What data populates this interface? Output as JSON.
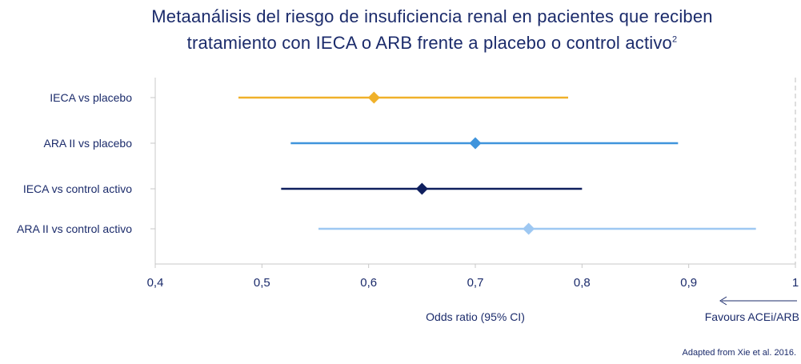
{
  "chart_data": {
    "type": "forest",
    "title_main": "Metaanálisis del riesgo de insuficiencia renal en pacientes que reciben tratamiento con IECA o ARB frente a placebo o control activo",
    "title_ref": "2",
    "xlabel": "Odds ratio (95% CI)",
    "favours_label": "Favours ACEi/ARB",
    "xlim": [
      0.4,
      1.0
    ],
    "xticks": [
      "0,4",
      "0,5",
      "0,6",
      "0,7",
      "0,8",
      "0,9",
      "1"
    ],
    "rows": [
      {
        "label": "IECA vs placebo",
        "estimate": 0.605,
        "lower": 0.478,
        "upper": 0.787,
        "color": "#f0b12a"
      },
      {
        "label": "ARA II vs placebo",
        "estimate": 0.7,
        "lower": 0.527,
        "upper": 0.89,
        "color": "#3f94dc"
      },
      {
        "label": "IECA vs control activo",
        "estimate": 0.65,
        "lower": 0.518,
        "upper": 0.8,
        "color": "#0f1f5e"
      },
      {
        "label": "ARA II vs control activo",
        "estimate": 0.75,
        "lower": 0.553,
        "upper": 0.963,
        "color": "#9ec8f2"
      }
    ],
    "reference_line": 1.0,
    "source": "Adapted from Xie et al. 2016."
  }
}
